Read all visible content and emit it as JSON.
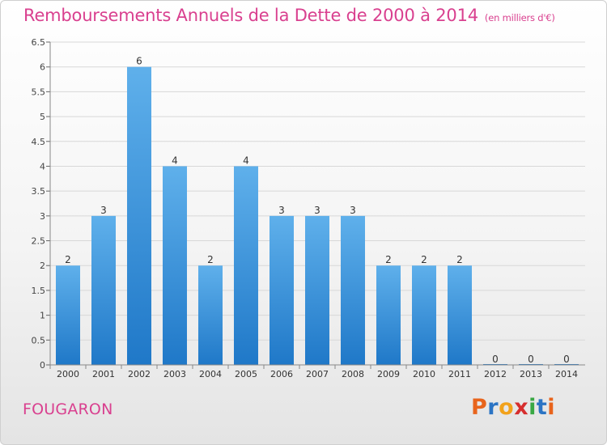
{
  "header": {
    "title": "Remboursements Annuels de la Dette de 2000 à 2014",
    "unit": "(en milliers d'€)"
  },
  "footer": {
    "commune": "FOUGARON",
    "logo_text": "Proxiti"
  },
  "colors": {
    "title": "#d9408f",
    "bar_top": "#5fb0eb",
    "bar_bottom": "#1f78c8",
    "grid": "#d8d8d8"
  },
  "chart_data": {
    "type": "bar",
    "categories": [
      "2000",
      "2001",
      "2002",
      "2003",
      "2004",
      "2005",
      "2006",
      "2007",
      "2008",
      "2009",
      "2010",
      "2011",
      "2012",
      "2013",
      "2014"
    ],
    "values": [
      2,
      3,
      6,
      4,
      2,
      4,
      3,
      3,
      3,
      2,
      2,
      2,
      0,
      0,
      0
    ],
    "data_labels": [
      "2",
      "3",
      "6",
      "4",
      "2",
      "4",
      "3",
      "3",
      "3",
      "2",
      "2",
      "2",
      "0",
      "0",
      "0"
    ],
    "ylim": [
      0,
      6.5
    ],
    "yticks": [
      "0",
      "0.5",
      "1",
      "1.5",
      "2",
      "2.5",
      "3",
      "3.5",
      "4",
      "4.5",
      "5",
      "5.5",
      "6",
      "6.5"
    ],
    "grid": true
  }
}
